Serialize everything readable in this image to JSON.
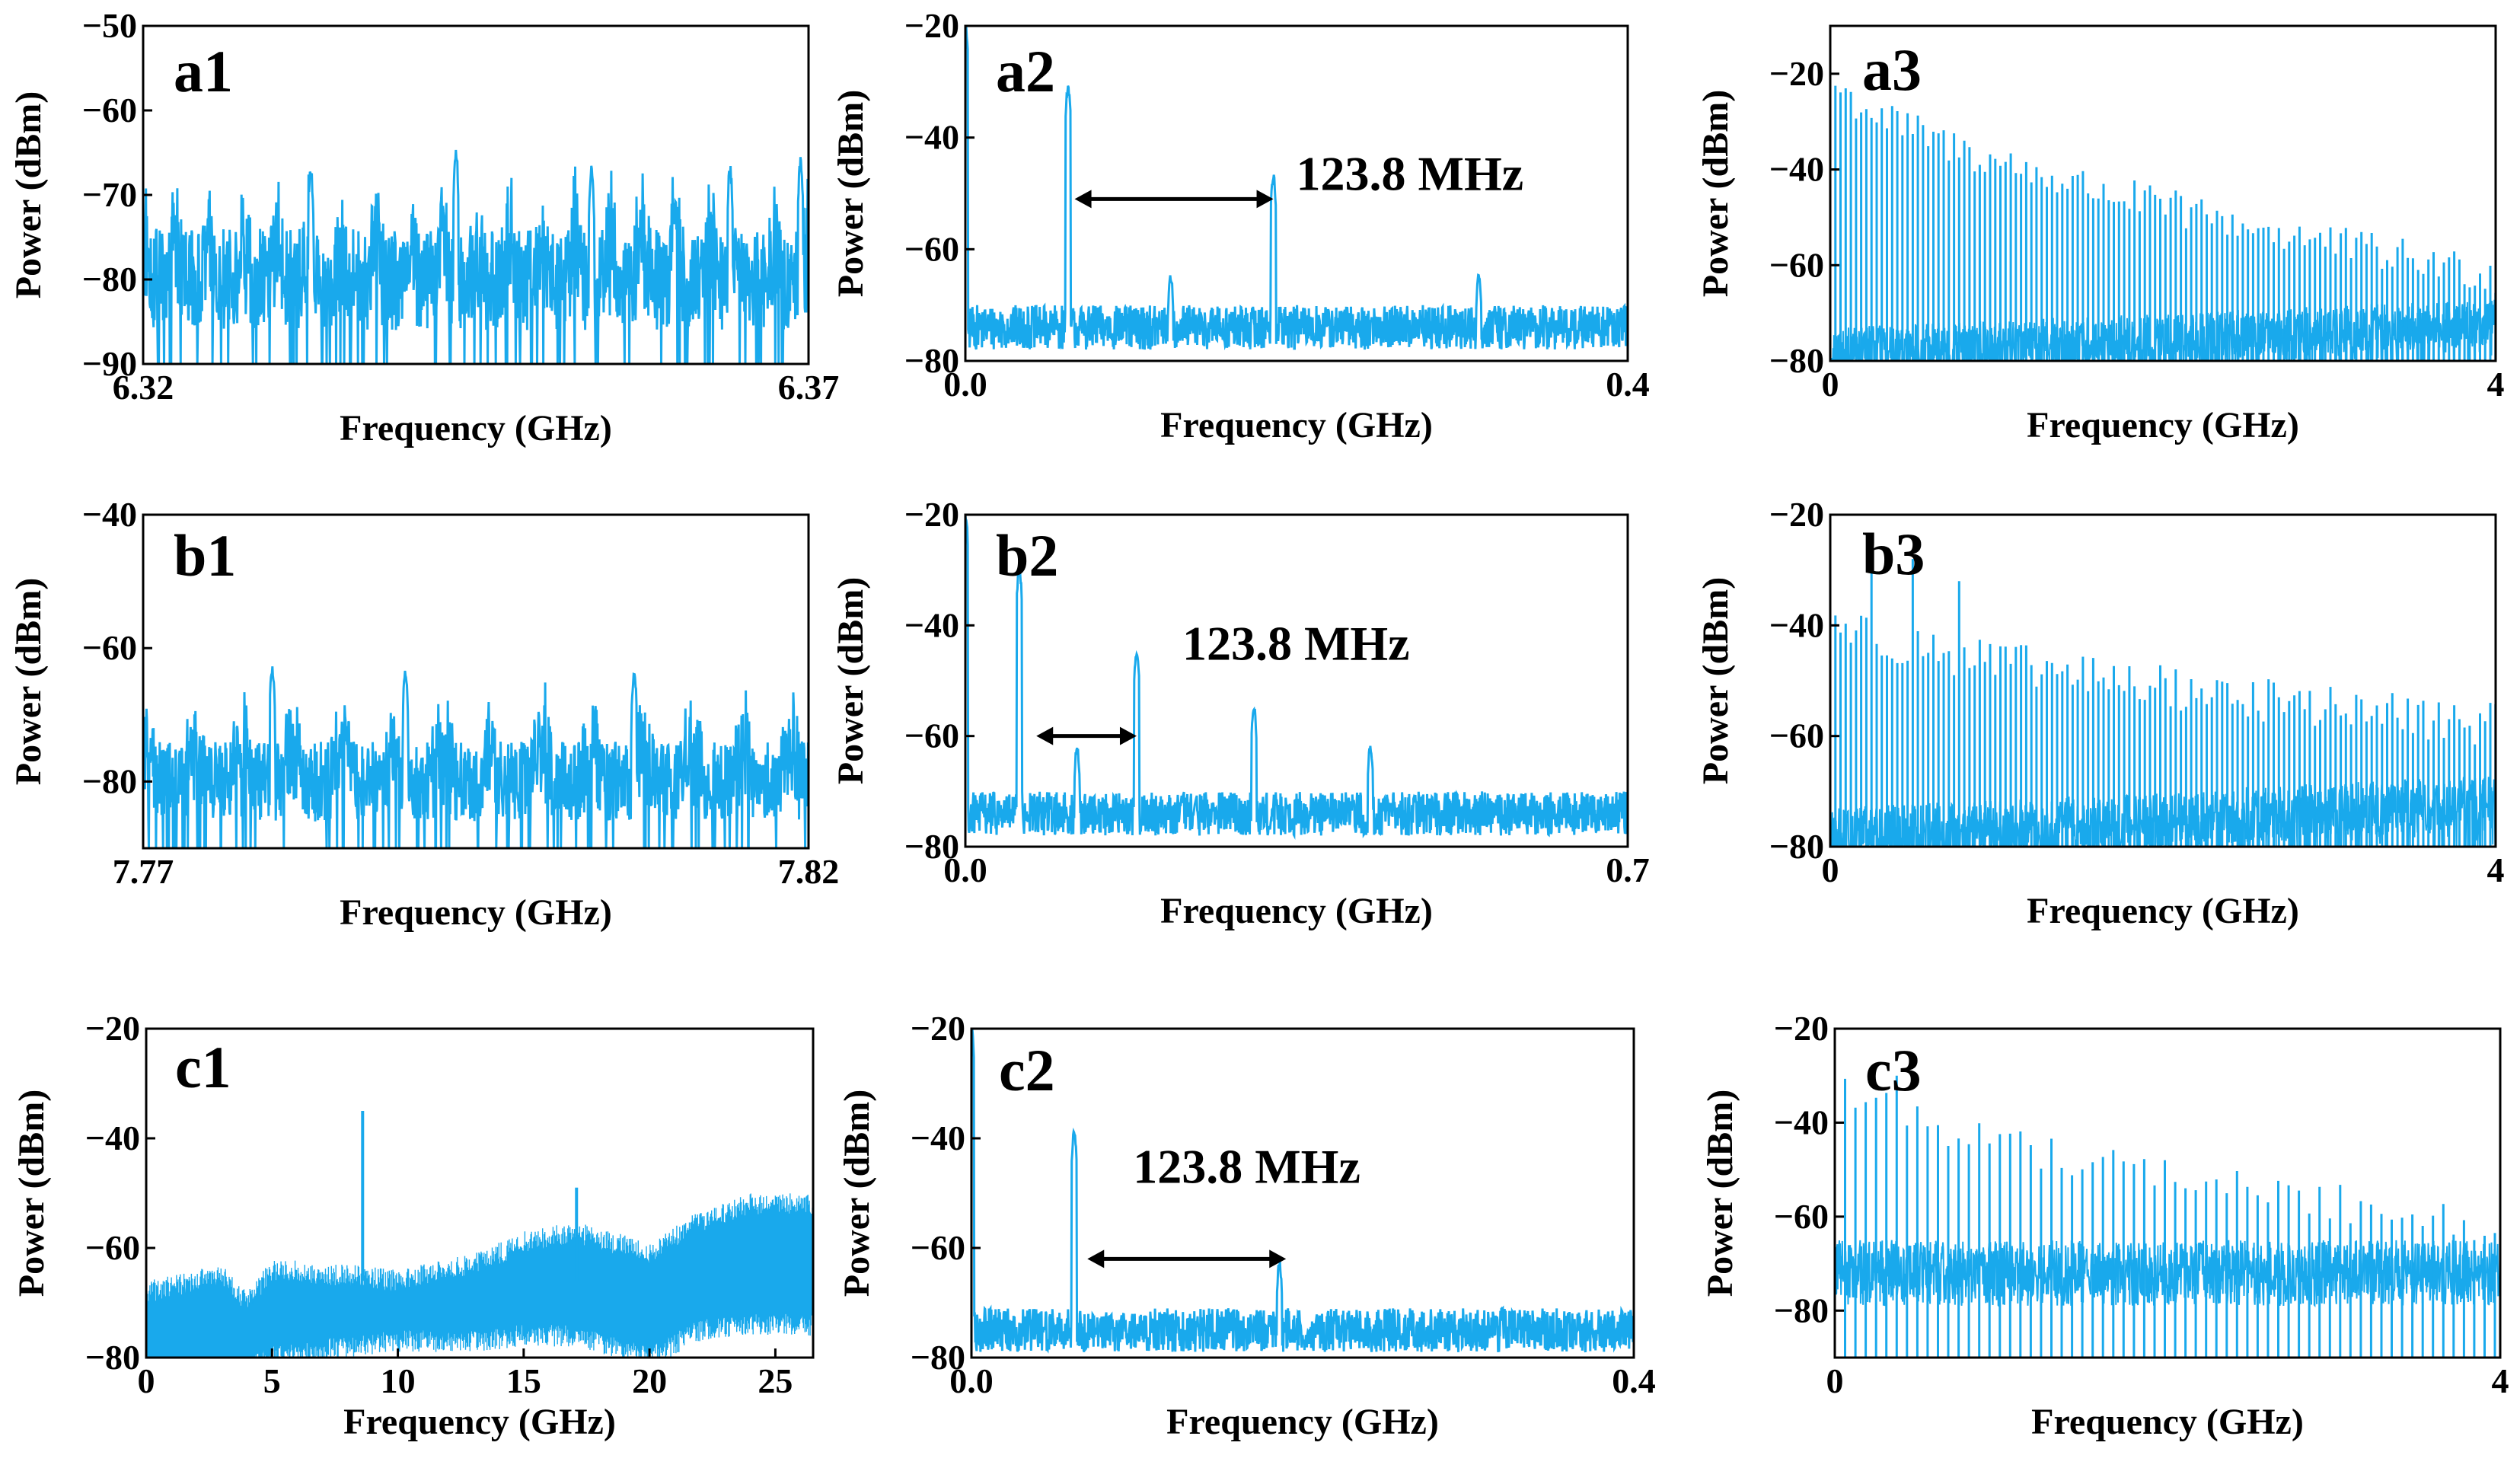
{
  "figure": {
    "series_color": "#19a9ec",
    "text_color": "#000000"
  },
  "chart_data": [
    {
      "id": "a1",
      "type": "line",
      "panel_label": "a1",
      "xlabel": "Frequency (GHz)",
      "ylabel": "Power (dBm)",
      "xlim": [
        6.32,
        6.37
      ],
      "ylim": [
        -90,
        -50
      ],
      "xticks": [
        6.32,
        6.37
      ],
      "xtick_labels": [
        "6.32",
        "6.37"
      ],
      "yticks": [
        -90,
        -80,
        -70,
        -60,
        -50
      ],
      "ytick_labels": [
        "−90",
        "−80",
        "−70",
        "−60",
        "−50"
      ],
      "noise": {
        "floor": -80,
        "spread": 6,
        "peak_period_GHz": 0.0025,
        "peak_level": -68
      },
      "peaks": [
        {
          "x": 6.3326,
          "y": -67
        },
        {
          "x": 6.3435,
          "y": -65
        },
        {
          "x": 6.3537,
          "y": -67
        },
        {
          "x": 6.3641,
          "y": -67
        },
        {
          "x": 6.3694,
          "y": -66
        }
      ]
    },
    {
      "id": "a2",
      "type": "line",
      "panel_label": "a2",
      "xlabel": "Frequency (GHz)",
      "ylabel": "Power (dBm)",
      "xlim": [
        0.0,
        0.4
      ],
      "ylim": [
        -80,
        -20
      ],
      "xticks": [
        0.0,
        0.4
      ],
      "xtick_labels": [
        "0.0",
        "0.4"
      ],
      "yticks": [
        -80,
        -60,
        -40,
        -20
      ],
      "ytick_labels": [
        "−80",
        "−60",
        "−40",
        "−20"
      ],
      "noise": {
        "floor": -74,
        "spread": 4
      },
      "peaks": [
        {
          "x": 0.0,
          "y": -20
        },
        {
          "x": 0.062,
          "y": -31
        },
        {
          "x": 0.124,
          "y": -65
        },
        {
          "x": 0.186,
          "y": -47
        },
        {
          "x": 0.31,
          "y": -65
        }
      ],
      "annotation": {
        "text": "123.8 MHz",
        "arrow_from": 0.066,
        "arrow_to": 0.186,
        "arrow_y": -51
      }
    },
    {
      "id": "a3",
      "type": "line",
      "panel_label": "a3",
      "xlabel": "Frequency (GHz)",
      "ylabel": "Power (dBm)",
      "xlim": [
        0,
        4
      ],
      "ylim": [
        -80,
        -10
      ],
      "xticks": [
        0,
        4
      ],
      "xtick_labels": [
        "0",
        "4"
      ],
      "yticks": [
        -80,
        -60,
        -40,
        -20
      ],
      "ytick_labels": [
        "−80",
        "−60",
        "−40",
        "−20"
      ],
      "comb": {
        "spacing_GHz": 0.031,
        "start_level": -20,
        "end_level": -62,
        "floor": -80
      }
    },
    {
      "id": "b1",
      "type": "line",
      "panel_label": "b1",
      "xlabel": "Frequency (GHz)",
      "ylabel": "Power (dBm)",
      "xlim": [
        7.77,
        7.82
      ],
      "ylim": [
        -90,
        -40
      ],
      "xticks": [
        7.77,
        7.82
      ],
      "xtick_labels": [
        "7.77",
        "7.82"
      ],
      "yticks": [
        -80,
        -60,
        -40
      ],
      "ytick_labels": [
        "−80",
        "−60",
        "−40"
      ],
      "noise": {
        "floor": -80,
        "spread": 6,
        "peak_period_GHz": 0.00375,
        "peak_level": -66
      },
      "peaks": [
        {
          "x": 7.7797,
          "y": -63
        },
        {
          "x": 7.7897,
          "y": -64
        },
        {
          "x": 7.8069,
          "y": -64
        }
      ]
    },
    {
      "id": "b2",
      "type": "line",
      "panel_label": "b2",
      "xlabel": "Frequency (GHz)",
      "ylabel": "Power (dBm)",
      "xlim": [
        0.0,
        0.7
      ],
      "ylim": [
        -80,
        -20
      ],
      "xticks": [
        0.0,
        0.7
      ],
      "xtick_labels": [
        "0.0",
        "0.7"
      ],
      "yticks": [
        -80,
        -60,
        -40,
        -20
      ],
      "ytick_labels": [
        "−80",
        "−60",
        "−40",
        "−20"
      ],
      "noise": {
        "floor": -74,
        "spread": 4
      },
      "peaks": [
        {
          "x": 0.0,
          "y": -20
        },
        {
          "x": 0.057,
          "y": -30
        },
        {
          "x": 0.118,
          "y": -62
        },
        {
          "x": 0.181,
          "y": -45
        },
        {
          "x": 0.243,
          "y": -72
        },
        {
          "x": 0.305,
          "y": -55
        },
        {
          "x": 0.428,
          "y": -62
        }
      ],
      "annotation": {
        "text": "123.8 MHz",
        "arrow_from": 0.075,
        "arrow_to": 0.181,
        "arrow_y": -60
      }
    },
    {
      "id": "b3",
      "type": "line",
      "panel_label": "b3",
      "xlabel": "Frequency (GHz)",
      "ylabel": "Power (dBm)",
      "xlim": [
        0,
        4
      ],
      "ylim": [
        -80,
        -20
      ],
      "xticks": [
        0,
        4
      ],
      "xtick_labels": [
        "0",
        "4"
      ],
      "yticks": [
        -80,
        -60,
        -40,
        -20
      ],
      "ytick_labels": [
        "−80",
        "−60",
        "−40",
        "−20"
      ],
      "comb": {
        "spacing_GHz": 0.031,
        "start_level": -38,
        "end_level": -58,
        "floor": -80
      },
      "peaks": [
        {
          "x": 0.26,
          "y": -26
        },
        {
          "x": 0.5,
          "y": -28
        },
        {
          "x": 0.77,
          "y": -32
        }
      ]
    },
    {
      "id": "c1",
      "type": "line",
      "panel_label": "c1",
      "xlabel": "Frequency (GHz)",
      "ylabel": "Power (dBm)",
      "xlim": [
        0,
        26.5
      ],
      "ylim": [
        -80,
        -20
      ],
      "xticks": [
        0,
        5,
        10,
        15,
        20,
        25
      ],
      "xtick_labels": [
        "0",
        "5",
        "10",
        "15",
        "20",
        "25"
      ],
      "yticks": [
        -80,
        -60,
        -40,
        -20
      ],
      "ytick_labels": [
        "−80",
        "−60",
        "−40",
        "−20"
      ],
      "band": {
        "x": [
          0,
          3,
          4,
          5,
          8,
          10,
          13,
          15,
          17,
          20,
          22,
          24,
          26.5
        ],
        "top": [
          -70,
          -67,
          -72,
          -66,
          -67,
          -68,
          -65,
          -61,
          -59,
          -63,
          -57,
          -54,
          -54
        ],
        "bottom": [
          -80,
          -80,
          -80,
          -78,
          -76,
          -75,
          -75,
          -74,
          -74,
          -78,
          -73,
          -72,
          -72
        ]
      },
      "peaks": [
        {
          "x": 8.6,
          "y": -35
        },
        {
          "x": 17.1,
          "y": -49
        }
      ]
    },
    {
      "id": "c2",
      "type": "line",
      "panel_label": "c2",
      "xlabel": "Frequency (GHz)",
      "ylabel": "Power (dBm)",
      "xlim": [
        0.0,
        0.4
      ],
      "ylim": [
        -80,
        -20
      ],
      "xticks": [
        0.0,
        0.4
      ],
      "xtick_labels": [
        "0.0",
        "0.4"
      ],
      "yticks": [
        -80,
        -60,
        -40,
        -20
      ],
      "ytick_labels": [
        "−80",
        "−60",
        "−40",
        "−20"
      ],
      "noise": {
        "floor": -75,
        "spread": 4
      },
      "peaks": [
        {
          "x": 0.0,
          "y": -20
        },
        {
          "x": 0.062,
          "y": -39
        },
        {
          "x": 0.186,
          "y": -63
        }
      ],
      "annotation": {
        "text": "123.8 MHz",
        "arrow_from": 0.07,
        "arrow_to": 0.19,
        "arrow_y": -62
      }
    },
    {
      "id": "c3",
      "type": "line",
      "panel_label": "c3",
      "xlabel": "Frequency (GHz)",
      "ylabel": "Power (dBm)",
      "xlim": [
        0,
        4
      ],
      "ylim": [
        -90,
        -20
      ],
      "xticks": [
        0,
        4
      ],
      "xtick_labels": [
        "0",
        "4"
      ],
      "yticks": [
        -80,
        -60,
        -40,
        -20
      ],
      "ytick_labels": [
        "−80",
        "−60",
        "−40",
        "−20"
      ],
      "comb": {
        "spacing_GHz": 0.062,
        "start_level": -30,
        "end_level": -62,
        "floor": -78,
        "dense_floor": true
      },
      "peaks": [
        {
          "x": 0.37,
          "y": -30
        }
      ]
    }
  ]
}
